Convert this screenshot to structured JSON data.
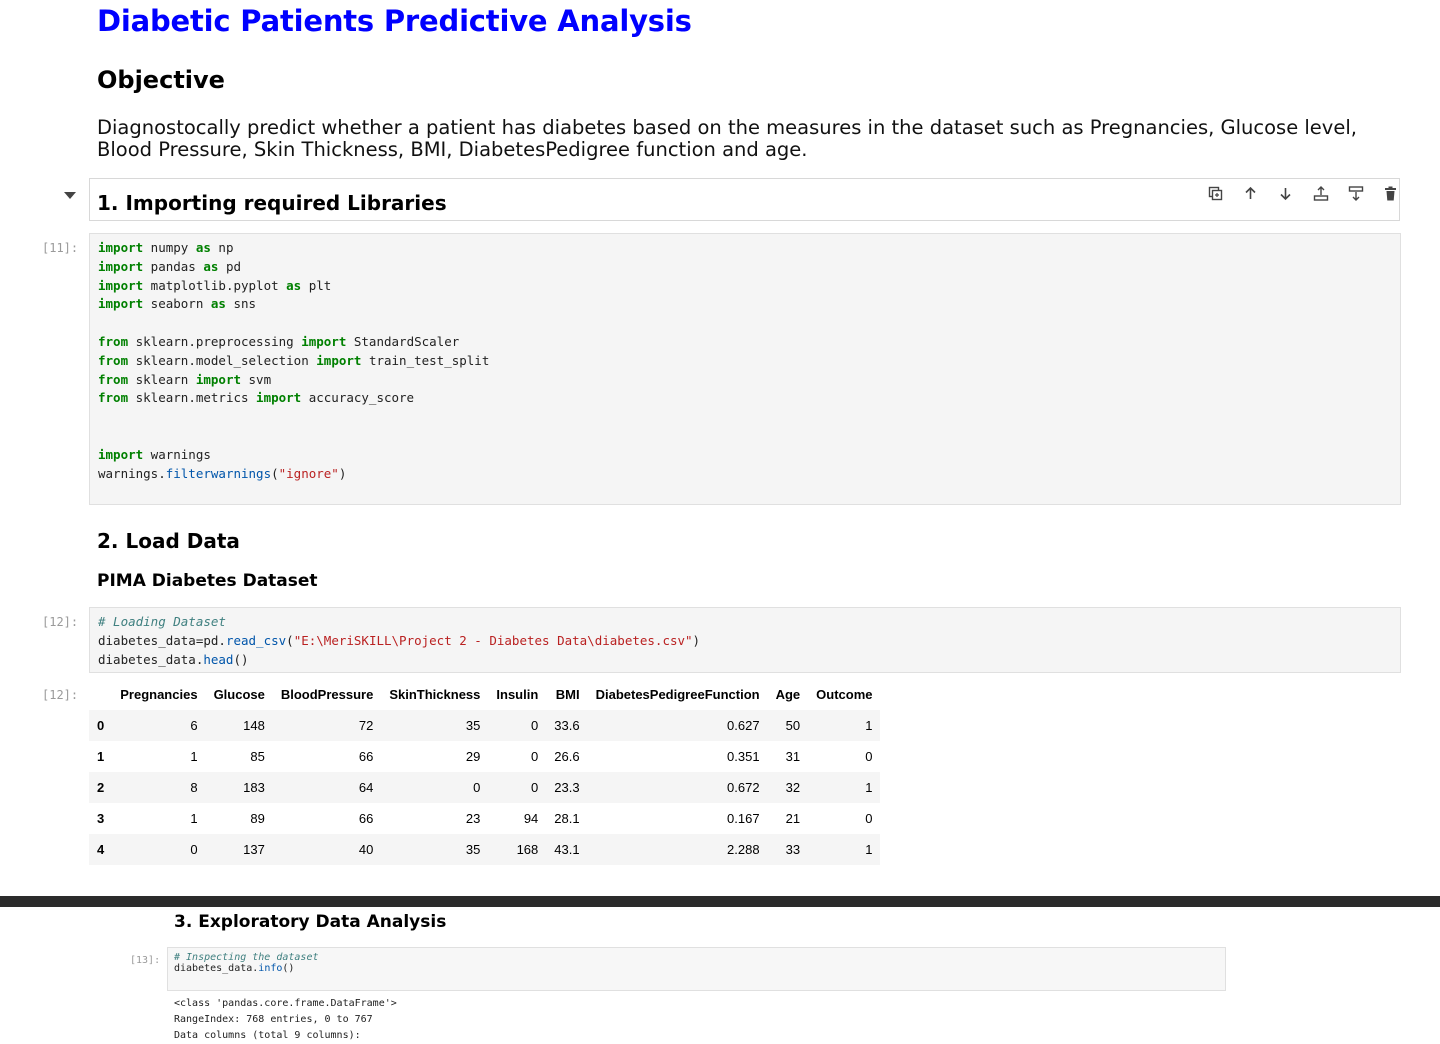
{
  "title": "Diabetic Patients Predictive Analysis",
  "objective_heading": "Objective",
  "objective_text": "Diagnostocally predict whether a patient has diabetes based on the measures in the dataset such as Pregnancies, Glucose level, Blood Pressure, Skin Thickness, BMI, DiabetesPedigree function and age.",
  "section1": {
    "heading": "1. Importing required Libraries"
  },
  "toolbar": {
    "icons": [
      "duplicate-icon",
      "move-up-icon",
      "move-down-icon",
      "insert-above-icon",
      "insert-below-icon",
      "delete-icon"
    ]
  },
  "cell11": {
    "prompt": "[11]:"
  },
  "section2": {
    "heading": "2. Load Data",
    "subheading": "PIMA Diabetes Dataset"
  },
  "cell12": {
    "prompt": "[12]:",
    "out_prompt": "[12]:",
    "comment": "# Loading Dataset",
    "path": "\"E:\\MeriSKILL\\Project 2 - Diabetes Data\\diabetes.csv\""
  },
  "df": {
    "columns": [
      "",
      "Pregnancies",
      "Glucose",
      "BloodPressure",
      "SkinThickness",
      "Insulin",
      "BMI",
      "DiabetesPedigreeFunction",
      "Age",
      "Outcome"
    ],
    "rows": [
      [
        "0",
        "6",
        "148",
        "72",
        "35",
        "0",
        "33.6",
        "0.627",
        "50",
        "1"
      ],
      [
        "1",
        "1",
        "85",
        "66",
        "29",
        "0",
        "26.6",
        "0.351",
        "31",
        "0"
      ],
      [
        "2",
        "8",
        "183",
        "64",
        "0",
        "0",
        "23.3",
        "0.672",
        "32",
        "1"
      ],
      [
        "3",
        "1",
        "89",
        "66",
        "23",
        "94",
        "28.1",
        "0.167",
        "21",
        "0"
      ],
      [
        "4",
        "0",
        "137",
        "40",
        "35",
        "168",
        "43.1",
        "2.288",
        "33",
        "1"
      ]
    ]
  },
  "section3": {
    "heading": "3. Exploratory Data Analysis"
  },
  "cell13": {
    "prompt": "[13]:",
    "comment": "# Inspecting the dataset",
    "output": [
      "<class 'pandas.core.frame.DataFrame'>",
      "RangeIndex: 768 entries, 0 to 767",
      "Data columns (total 9 columns):"
    ]
  }
}
